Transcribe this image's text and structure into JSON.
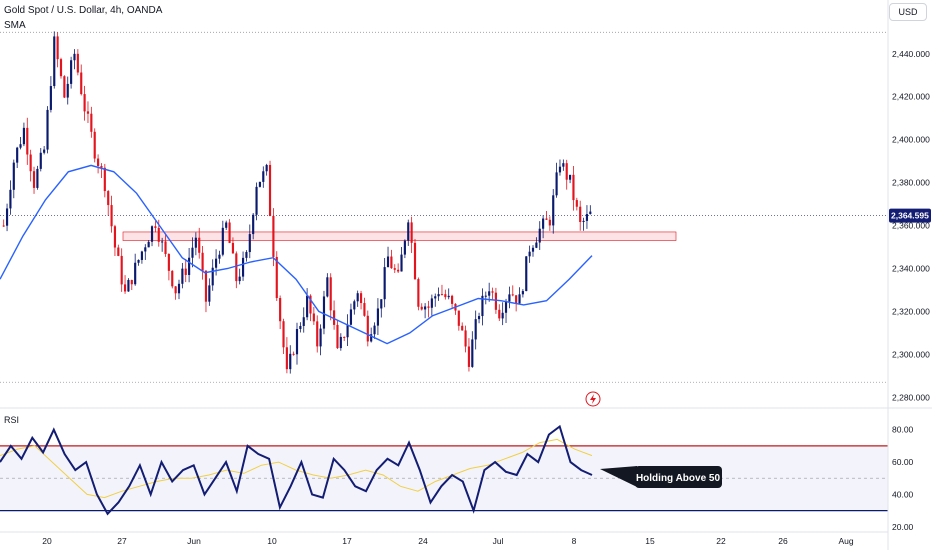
{
  "header": {
    "title": "Gold Spot / U.S. Dollar, 4h, OANDA",
    "indicator": "SMA",
    "currency": "USD"
  },
  "colors": {
    "up": "#0a1a6e",
    "down": "#e3141e",
    "sma": "#2962ff",
    "zone_fill": "#fde3e5",
    "zone_stroke": "#e3141e",
    "rsi_line": "#131d73",
    "rsi_ma": "#f2cf45",
    "rsi_upper": "#c21818",
    "rsi_lower": "#0a1a6e",
    "price_badge": "#131d73"
  },
  "icons": {
    "lightning": "lightning-bolt-icon"
  },
  "chart_data": [
    {
      "type": "candlestick",
      "title": "Gold Spot / U.S. Dollar, 4h, OANDA",
      "x_ticks": [
        "20",
        "27",
        "Jun",
        "10",
        "17",
        "24",
        "Jul",
        "8",
        "15",
        "22",
        "26",
        "Aug"
      ],
      "ylim": [
        2275,
        2452
      ],
      "y_ticks": [
        "2,280.000",
        "2,300.000",
        "2,320.000",
        "2,340.000",
        "2,360.000",
        "2,380.000",
        "2,400.000",
        "2,420.000",
        "2,440.000"
      ],
      "last_price": "2,364.595",
      "last_price_value": 2364.6,
      "reference_lines": [
        2450,
        2287
      ],
      "zone": {
        "from": 2353,
        "to": 2357
      },
      "price_path": [
        2360,
        2390,
        2405,
        2380,
        2395,
        2445,
        2420,
        2440,
        2415,
        2395,
        2380,
        2350,
        2328,
        2340,
        2352,
        2362,
        2345,
        2330,
        2340,
        2355,
        2325,
        2345,
        2360,
        2335,
        2345,
        2380,
        2385,
        2330,
        2290,
        2310,
        2325,
        2305,
        2335,
        2300,
        2315,
        2330,
        2310,
        2320,
        2345,
        2335,
        2365,
        2325,
        2322,
        2330,
        2325,
        2315,
        2298,
        2320,
        2332,
        2320,
        2330,
        2325,
        2350,
        2358,
        2363,
        2390,
        2380,
        2360,
        2365
      ],
      "sma_path": [
        2335,
        2355,
        2372,
        2385,
        2388,
        2385,
        2375,
        2360,
        2345,
        2338,
        2340,
        2343,
        2345,
        2335,
        2320,
        2315,
        2310,
        2305,
        2310,
        2318,
        2322,
        2326,
        2325,
        2323,
        2325,
        2335,
        2346
      ]
    },
    {
      "type": "line",
      "title": "RSI",
      "ylim": [
        18,
        86
      ],
      "y_ticks": [
        "20.00",
        "40.00",
        "60.00",
        "80.00"
      ],
      "bands": [
        70,
        30
      ],
      "mid": 50,
      "rsi_path": [
        60,
        70,
        62,
        75,
        66,
        80,
        65,
        55,
        60,
        40,
        28,
        35,
        45,
        58,
        40,
        60,
        48,
        55,
        58,
        40,
        50,
        60,
        42,
        70,
        65,
        62,
        32,
        45,
        60,
        40,
        38,
        62,
        55,
        45,
        42,
        55,
        62,
        58,
        72,
        55,
        35,
        45,
        52,
        48,
        30,
        55,
        60,
        54,
        52,
        65,
        60,
        77,
        82,
        60,
        55,
        52
      ],
      "rsi_ma_path": [
        64,
        68,
        70,
        60,
        50,
        40,
        38,
        42,
        45,
        48,
        50,
        50,
        52,
        55,
        53,
        58,
        60,
        55,
        52,
        50,
        52,
        55,
        52,
        45,
        42,
        48,
        52,
        56,
        58,
        62,
        66,
        72,
        74,
        68,
        64
      ],
      "annotation": "Holding Above 50"
    }
  ]
}
